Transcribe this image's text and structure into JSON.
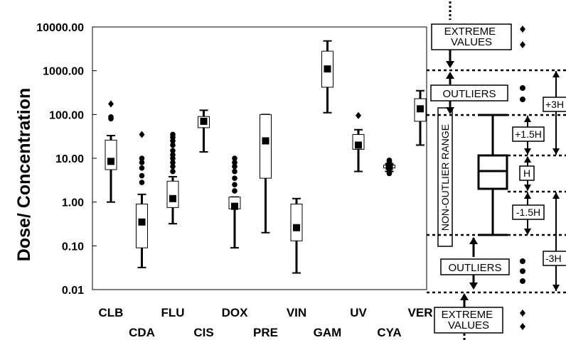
{
  "chart_data": {
    "type": "boxplot",
    "ylabel": "Dose/ Concentration",
    "yscale": "log",
    "ylim": [
      0.01,
      10000
    ],
    "yticks": [
      "0.01",
      "0.10",
      "1.00",
      "10.00",
      "100.00",
      "1000.00",
      "10000.00"
    ],
    "grid": false,
    "series": [
      {
        "name": "CLB",
        "q1": 5.5,
        "median": 8.5,
        "q3": 26,
        "whisker_low": 1.0,
        "whisker_high": 33,
        "outliers": [
          80,
          88
        ],
        "extremes": [
          175
        ],
        "label_row": "top"
      },
      {
        "name": "CDA",
        "q1": 0.09,
        "median": 0.35,
        "q3": 0.9,
        "whisker_low": 0.032,
        "whisker_high": 1.5,
        "outliers": [
          2.8,
          4,
          6,
          8,
          10
        ],
        "extremes": [
          35
        ],
        "label_row": "bottom"
      },
      {
        "name": "FLU",
        "q1": 0.75,
        "median": 1.2,
        "q3": 3,
        "whisker_low": 0.32,
        "whisker_high": 3.8,
        "outliers": [
          5,
          6.5,
          8,
          10,
          12,
          15,
          20,
          25,
          30,
          35
        ],
        "extremes": [],
        "label_row": "top"
      },
      {
        "name": "CIS",
        "q1": 50,
        "median": 70,
        "q3": 90,
        "whisker_low": 14,
        "whisker_high": 125,
        "outliers": [],
        "extremes": [],
        "label_row": "bottom"
      },
      {
        "name": "DOX",
        "q1": 0.7,
        "median": 0.8,
        "q3": 1.3,
        "whisker_low": 0.09,
        "whisker_high": 1.3,
        "outliers": [
          1.8,
          2.5,
          3.5,
          5,
          6.5,
          8,
          10
        ],
        "extremes": [],
        "label_row": "top"
      },
      {
        "name": "PRE",
        "q1": 3.5,
        "median": 25,
        "q3": 100,
        "whisker_low": 0.2,
        "whisker_high": 100,
        "outliers": [],
        "extremes": [],
        "label_row": "bottom"
      },
      {
        "name": "VIN",
        "q1": 0.13,
        "median": 0.26,
        "q3": 0.9,
        "whisker_low": 0.024,
        "whisker_high": 1.2,
        "outliers": [],
        "extremes": [],
        "label_row": "top"
      },
      {
        "name": "GAM",
        "q1": 420,
        "median": 1100,
        "q3": 2800,
        "whisker_low": 110,
        "whisker_high": 4800,
        "outliers": [],
        "extremes": [],
        "label_row": "bottom"
      },
      {
        "name": "UV",
        "q1": 16,
        "median": 20,
        "q3": 35,
        "whisker_low": 5,
        "whisker_high": 45,
        "outliers": [],
        "extremes": [
          95
        ],
        "label_row": "top"
      },
      {
        "name": "CYA",
        "q1": 6,
        "median": 6.5,
        "q3": 7,
        "whisker_low": 5,
        "whisker_high": 7.5,
        "outliers": [
          4.5,
          5,
          7.5,
          8,
          8.5,
          9
        ],
        "extremes": [],
        "label_row": "bottom"
      },
      {
        "name": "VER",
        "q1": 70,
        "median": 135,
        "q3": 230,
        "whisker_low": 20,
        "whisker_high": 350,
        "outliers": [],
        "extremes": [],
        "label_row": "top"
      }
    ]
  },
  "legend": {
    "extreme_values_label": "EXTREME\nVALUES",
    "outliers_label": "OUTLIERS",
    "non_outlier_range_label": "NON-OUTLIER RANGE",
    "h_label": "H",
    "plus_1_5h_label": "+1.5H",
    "minus_1_5h_label": "-1.5H",
    "plus_3h_label": "+3H",
    "minus_3h_label": "-3H"
  }
}
